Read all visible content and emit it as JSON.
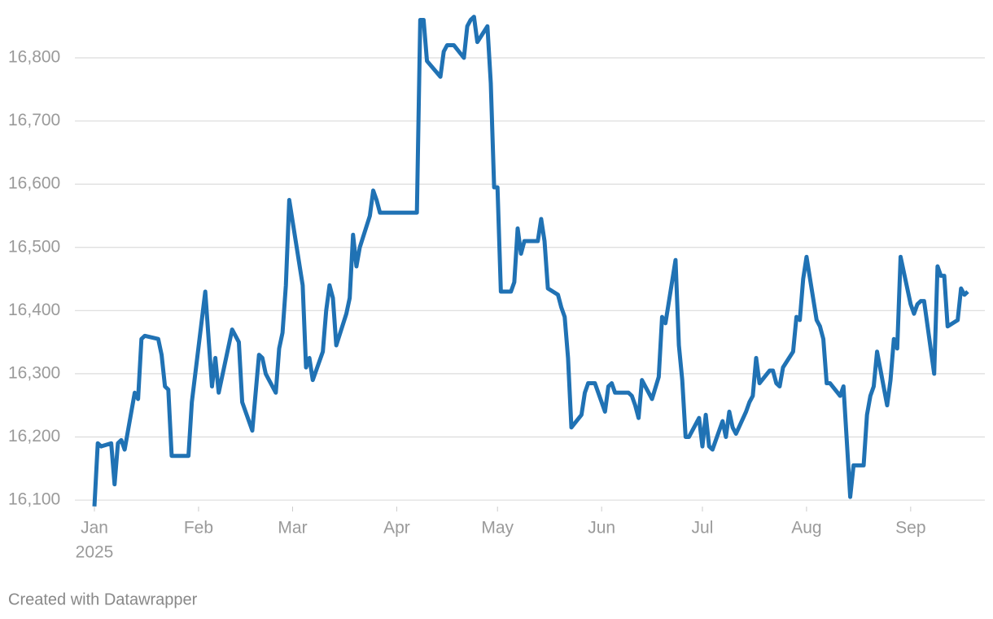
{
  "chart_data": {
    "type": "line",
    "footer": "Created with Datawrapper",
    "x": [
      0,
      1,
      2,
      5,
      6,
      7,
      8,
      9,
      12,
      13,
      14,
      15,
      19,
      20,
      21,
      22,
      23,
      28,
      29,
      33,
      35,
      36,
      37,
      41,
      43,
      44,
      47,
      49,
      50,
      51,
      54,
      55,
      56,
      57,
      58,
      62,
      63,
      64,
      65,
      68,
      69,
      70,
      71,
      72,
      75,
      76,
      77,
      78,
      79,
      82,
      83,
      84,
      85,
      96,
      97,
      98,
      99,
      103,
      104,
      105,
      107,
      110,
      111,
      112,
      113,
      114,
      117,
      118,
      119,
      120,
      121,
      124,
      125,
      126,
      127,
      128,
      132,
      133,
      134,
      135,
      138,
      139,
      140,
      141,
      142,
      145,
      146,
      147,
      149,
      152,
      153,
      154,
      155,
      159,
      160,
      161,
      162,
      163,
      166,
      168,
      169,
      170,
      173,
      174,
      175,
      176,
      177,
      180,
      181,
      182,
      183,
      184,
      187,
      188,
      189,
      190,
      191,
      194,
      195,
      196,
      197,
      198,
      201,
      202,
      203,
      204,
      205,
      208,
      209,
      210,
      211,
      212,
      215,
      216,
      217,
      218,
      219,
      222,
      223,
      225,
      226,
      229,
      230,
      231,
      232,
      233,
      236,
      237,
      238,
      239,
      240,
      243,
      244,
      245,
      246,
      247,
      250,
      251,
      252,
      253,
      254,
      257,
      258,
      259,
      260
    ],
    "series": [
      {
        "color": "#2072b4",
        "values": [
          16090,
          16190,
          16185,
          16190,
          16125,
          16190,
          16195,
          16180,
          16270,
          16260,
          16355,
          16360,
          16355,
          16330,
          16280,
          16275,
          16170,
          16170,
          16255,
          16430,
          16280,
          16325,
          16270,
          16370,
          16350,
          16255,
          16210,
          16330,
          16325,
          16300,
          16270,
          16340,
          16365,
          16440,
          16575,
          16440,
          16310,
          16325,
          16290,
          16335,
          16400,
          16440,
          16420,
          16345,
          16395,
          16420,
          16520,
          16470,
          16500,
          16550,
          16590,
          16575,
          16555,
          16555,
          16860,
          16860,
          16795,
          16770,
          16810,
          16820,
          16820,
          16800,
          16850,
          16860,
          16865,
          16825,
          16850,
          16760,
          16595,
          16595,
          16430,
          16430,
          16445,
          16530,
          16490,
          16510,
          16510,
          16545,
          16510,
          16435,
          16425,
          16405,
          16390,
          16325,
          16215,
          16235,
          16270,
          16285,
          16285,
          16240,
          16280,
          16285,
          16270,
          16270,
          16265,
          16250,
          16230,
          16290,
          16260,
          16295,
          16390,
          16380,
          16480,
          16345,
          16290,
          16200,
          16200,
          16230,
          16185,
          16235,
          16185,
          16180,
          16225,
          16200,
          16240,
          16215,
          16205,
          16240,
          16255,
          16265,
          16325,
          16285,
          16305,
          16305,
          16285,
          16280,
          16310,
          16335,
          16390,
          16385,
          16450,
          16485,
          16385,
          16375,
          16355,
          16285,
          16285,
          16265,
          16280,
          16105,
          16155,
          16155,
          16235,
          16265,
          16280,
          16335,
          16250,
          16290,
          16355,
          16340,
          16485,
          16410,
          16395,
          16410,
          16415,
          16415,
          16300,
          16470,
          16455,
          16455,
          16375,
          16385,
          16435,
          16425,
          16430
        ]
      }
    ],
    "xlim": [
      0,
      260
    ],
    "xticks": [
      {
        "value": 0,
        "label": "Jan"
      },
      {
        "value": 31,
        "label": "Feb"
      },
      {
        "value": 59,
        "label": "Mar"
      },
      {
        "value": 90,
        "label": "Apr"
      },
      {
        "value": 120,
        "label": "May"
      },
      {
        "value": 151,
        "label": "Jun"
      },
      {
        "value": 181,
        "label": "Jul"
      },
      {
        "value": 212,
        "label": "Aug"
      },
      {
        "value": 243,
        "label": "Sep"
      }
    ],
    "year_label": "2025",
    "ylim": [
      16090,
      16870
    ],
    "yticks": [
      {
        "value": 16100,
        "label": "16,100"
      },
      {
        "value": 16200,
        "label": "16,200"
      },
      {
        "value": 16300,
        "label": "16,300"
      },
      {
        "value": 16400,
        "label": "16,400"
      },
      {
        "value": 16500,
        "label": "16,500"
      },
      {
        "value": 16600,
        "label": "16,600"
      },
      {
        "value": 16700,
        "label": "16,700"
      },
      {
        "value": 16800,
        "label": "16,800"
      }
    ],
    "grid": true
  }
}
